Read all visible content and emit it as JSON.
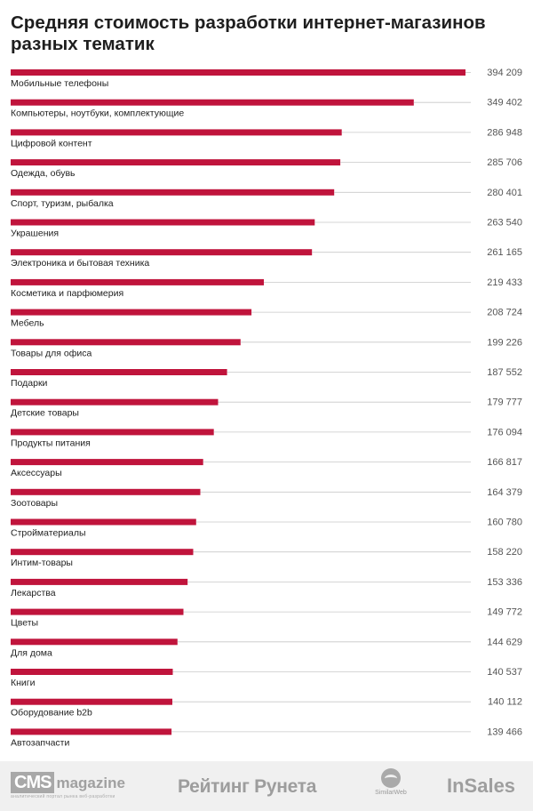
{
  "chart_data": {
    "type": "bar",
    "orientation": "horizontal",
    "title": "Средняя стоимость разработки интернет-магазинов разных тематик",
    "xlim": [
      0,
      394209
    ],
    "bar_color": "#c0143c",
    "categories": [
      "Мобильные телефоны",
      "Компьютеры, ноутбуки, комплектующие",
      "Цифровой контент",
      "Одежда, обувь",
      "Спорт, туризм, рыбалка",
      "Украшения",
      "Электроника и бытовая техника",
      "Косметика и парфюмерия",
      "Мебель",
      "Товары для офиса",
      "Подарки",
      "Детские товары",
      "Продукты питания",
      "Аксессуары",
      "Зоотовары",
      "Стройматериалы",
      "Интим-товары",
      "Лекарства",
      "Цветы",
      "Для дома",
      "Книги",
      "Оборудование b2b",
      "Автозапчасти"
    ],
    "values": [
      394209,
      349402,
      286948,
      285706,
      280401,
      263540,
      261165,
      219433,
      208724,
      199226,
      187552,
      179777,
      176094,
      166817,
      164379,
      160780,
      158220,
      153336,
      149772,
      144629,
      140537,
      140112,
      139466
    ],
    "value_labels": [
      "394 209",
      "349 402",
      "286 948",
      "285 706",
      "280 401",
      "263 540",
      "261 165",
      "219 433",
      "208 724",
      "199 226",
      "187 552",
      "179 777",
      "176 094",
      "166 817",
      "164 379",
      "160 780",
      "158 220",
      "153 336",
      "149 772",
      "144 629",
      "140 537",
      "140 112",
      "139 466"
    ]
  },
  "footer": {
    "cms_box": "CMS",
    "cms_word": "magazine",
    "cms_tagline": "аналитический портал рынка веб-разработки",
    "rating": "Рейтинг Рунета",
    "similarweb": "SimilarWeb",
    "insales": "InSales"
  }
}
